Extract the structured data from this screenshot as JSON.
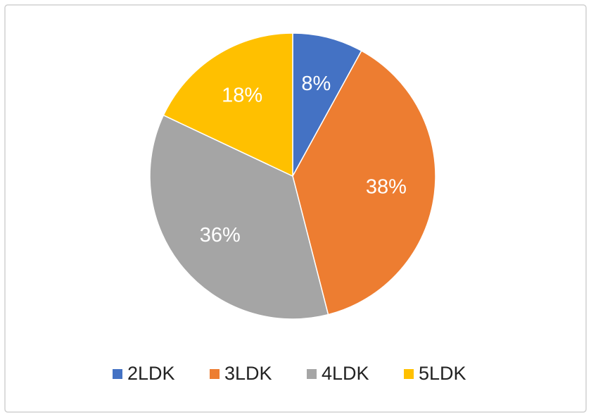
{
  "chart_data": {
    "type": "pie",
    "categories": [
      "2LDK",
      "3LDK",
      "4LDK",
      "5LDK"
    ],
    "values": [
      8,
      38,
      36,
      18
    ],
    "value_labels": [
      "8%",
      "38%",
      "36%",
      "18%"
    ],
    "colors": [
      "#4472c4",
      "#ed7d31",
      "#a5a5a5",
      "#ffc000"
    ],
    "legend": "bottom"
  }
}
